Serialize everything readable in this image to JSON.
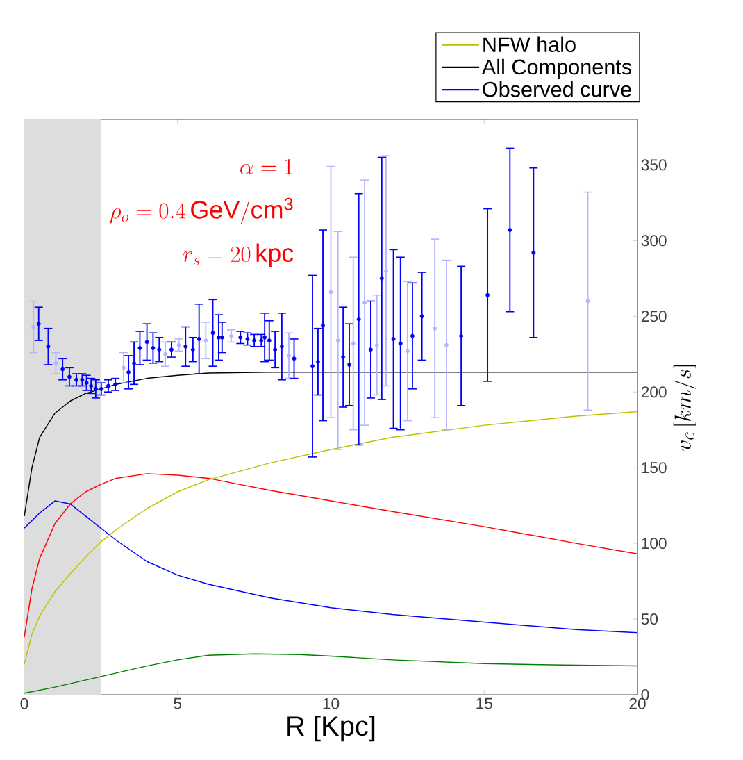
{
  "chart_data": {
    "type": "line",
    "xlabel": "R [Kpc]",
    "ylabel": "v_c\\,[km/s]",
    "xlim": [
      0,
      20
    ],
    "ylim": [
      0,
      380
    ],
    "xticks": [
      0,
      5,
      10,
      15,
      20
    ],
    "yticks": [
      0,
      50,
      100,
      150,
      200,
      250,
      300,
      350
    ],
    "legend": "top right",
    "marker": "none",
    "annotations": [
      "\\alpha = 1",
      "\\rho_o = 0.4\\,\\mathrm{GeV/cm^3}",
      "r_s = 20\\,\\mathrm{kpc}"
    ],
    "bands": [
      {
        "axis": "x",
        "from": 0,
        "to": 2.5,
        "color": "#dddddd"
      }
    ],
    "series": [
      {
        "color": "#ff0000",
        "x": [
          0,
          0.25,
          0.5,
          1,
          1.5,
          2,
          2.5,
          3,
          4,
          5,
          6,
          7,
          8,
          10,
          12,
          15,
          18,
          20
        ],
        "values": [
          38,
          70,
          90,
          113,
          126,
          134,
          139,
          143,
          146,
          145,
          143,
          139,
          135,
          128,
          121,
          111,
          100,
          93
        ]
      },
      {
        "color": "#0000ff",
        "x": [
          0,
          0.5,
          1,
          1.5,
          2,
          2.5,
          3,
          4,
          5,
          6,
          8,
          10,
          12,
          15,
          18,
          20
        ],
        "values": [
          110,
          120,
          128,
          126,
          118,
          110,
          102,
          88,
          79,
          73,
          64,
          57.5,
          53,
          48,
          43,
          41
        ]
      },
      {
        "color": "#008000",
        "x": [
          0,
          1,
          2.5,
          4,
          5,
          6,
          7.5,
          9,
          10,
          12,
          15,
          18,
          20
        ],
        "values": [
          1,
          5,
          12,
          19,
          23,
          26,
          27,
          26.5,
          25.5,
          23,
          20.5,
          19.5,
          19
        ]
      },
      {
        "name": "NFW halo",
        "color": "#bfbf00",
        "x": [
          0,
          0.25,
          0.5,
          1,
          1.5,
          2,
          2.5,
          3,
          4,
          5,
          6,
          8,
          10,
          12,
          15,
          18,
          20
        ],
        "values": [
          20,
          40,
          52,
          68,
          80,
          91,
          101,
          109,
          123,
          134,
          142,
          153,
          162,
          170,
          178,
          184,
          187
        ]
      },
      {
        "name": "All Components",
        "color": "#000000",
        "x": [
          0,
          0.25,
          0.5,
          1,
          1.5,
          2,
          2.5,
          3,
          4,
          5,
          6,
          8,
          10,
          15,
          20
        ],
        "values": [
          118,
          150,
          170,
          186,
          194,
          199,
          202,
          205,
          209,
          211,
          212.5,
          213,
          213,
          213,
          213
        ]
      },
      {
        "type": "scatter",
        "marker": "circle",
        "color": "#b4b4ff",
        "x": [
          0.3,
          1.03,
          3.24,
          4.6,
          5.04,
          5.92,
          6.75,
          8.63,
          10.0,
          10.23,
          10.73,
          11.1,
          11.5,
          11.8,
          12.5,
          13.39,
          13.77,
          18.38
        ],
        "values": [
          243,
          219,
          216,
          225,
          231,
          234,
          237,
          224,
          266,
          234,
          232,
          259,
          231,
          280,
          227,
          242,
          231,
          260
        ],
        "errors": [
          17,
          7,
          10,
          8,
          4,
          12,
          4,
          15,
          83,
          72,
          57,
          81,
          33,
          76,
          46,
          59,
          56,
          72
        ]
      },
      {
        "type": "scatter",
        "marker": "circle",
        "name": "Observed curve",
        "color": "#0000ff",
        "x": [
          0.47,
          0.78,
          1.25,
          1.47,
          1.7,
          1.89,
          2.03,
          2.18,
          2.33,
          2.51,
          2.74,
          2.97,
          3.4,
          3.58,
          3.77,
          4.0,
          4.2,
          4.4,
          4.8,
          5.26,
          5.5,
          5.7,
          6.15,
          6.34,
          6.45,
          7.05,
          7.28,
          7.5,
          7.73,
          7.84,
          7.99,
          8.18,
          8.4,
          8.8,
          9.4,
          9.58,
          9.74,
          10.4,
          10.6,
          10.91,
          11.3,
          11.66,
          12.04,
          12.27,
          12.66,
          12.97,
          14.25,
          15.11,
          15.84,
          16.61
        ],
        "values": [
          245,
          230,
          215,
          210,
          208,
          208,
          206,
          204,
          202,
          202,
          204,
          205,
          213,
          219,
          229,
          233,
          229,
          228,
          228,
          230,
          228,
          235,
          239,
          236,
          236,
          236,
          235,
          234,
          234,
          236,
          234,
          228,
          230,
          222,
          217,
          220,
          244,
          223,
          218,
          248,
          228,
          275,
          235,
          232,
          237,
          250,
          237,
          264,
          307,
          292
        ],
        "errors": [
          11,
          12,
          7,
          6,
          4,
          4,
          5,
          5,
          6,
          4,
          4,
          4,
          11,
          14,
          11,
          12,
          10,
          8,
          5,
          13,
          8,
          23,
          22,
          15,
          10,
          4,
          4,
          4,
          4,
          16,
          13,
          12,
          22,
          13,
          60,
          22,
          63,
          33,
          27,
          83,
          32,
          80,
          59,
          57,
          35,
          29,
          46,
          57,
          54,
          56
        ]
      }
    ]
  }
}
